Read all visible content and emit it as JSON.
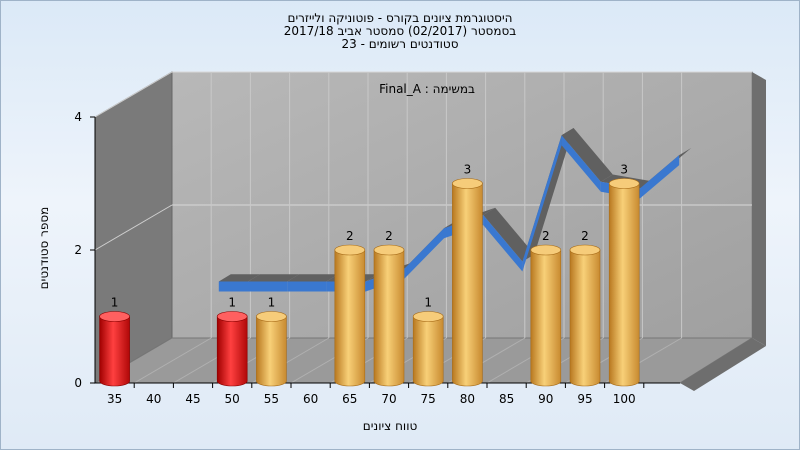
{
  "chart_data": {
    "type": "bar",
    "title_lines": [
      "היסטוגרמת ציונים בקורס - פוטוניקה ולייזרים",
      "בסמסטר  (02/2017)  סמסטר אביב 2017/18",
      "סטודנטים רשומים - 23"
    ],
    "annotation": "במשימה : Final_A",
    "xlabel": "טווח ציונים",
    "ylabel": "מספר סטודנטים",
    "x_ticks": [
      "35",
      "40",
      "45",
      "50",
      "55",
      "60",
      "65",
      "70",
      "75",
      "80",
      "85",
      "90",
      "95",
      "100"
    ],
    "y_ticks": [
      "0",
      "2",
      "4"
    ],
    "ylim": [
      0,
      4
    ],
    "bars": [
      {
        "bin": "35",
        "value": 1,
        "color": "#e01010"
      },
      {
        "bin": "50",
        "value": 1,
        "color": "#e01010"
      },
      {
        "bin": "55",
        "value": 1,
        "color": "#e0a040"
      },
      {
        "bin": "65",
        "value": 2,
        "color": "#e0a040"
      },
      {
        "bin": "70",
        "value": 2,
        "color": "#e0a040"
      },
      {
        "bin": "75",
        "value": 1,
        "color": "#e0a040"
      },
      {
        "bin": "80",
        "value": 3,
        "color": "#e0a040"
      },
      {
        "bin": "90",
        "value": 2,
        "color": "#e0a040"
      },
      {
        "bin": "95",
        "value": 2,
        "color": "#e0a040"
      },
      {
        "bin": "100",
        "value": 3,
        "color": "#e0a040"
      }
    ],
    "ribbon": {
      "x": [
        "45",
        "50",
        "55",
        "60",
        "65",
        "70",
        "75",
        "80",
        "85",
        "90",
        "95",
        "100"
      ],
      "values": [
        1.0,
        1.0,
        1.0,
        1.0,
        1.2,
        1.8,
        2.0,
        1.3,
        3.2,
        2.5,
        2.4,
        2.9
      ],
      "colors": {
        "top": "#606060",
        "front": "#3a78d0"
      }
    },
    "grid": true,
    "colors": {
      "wall": "#a8a8a8",
      "side_wall": "#7a7a7a",
      "floor": "#9a9a9a"
    }
  }
}
